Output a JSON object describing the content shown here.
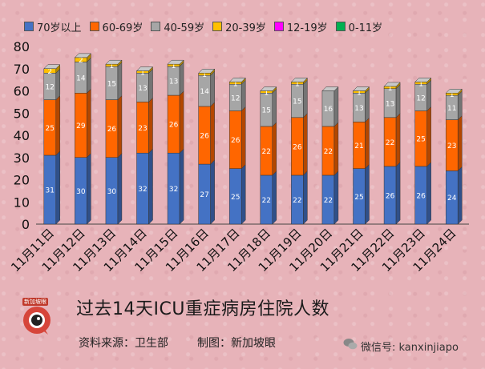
{
  "chart_data": {
    "type": "bar",
    "stacked": true,
    "categories": [
      "11月11日",
      "11月12日",
      "11月13日",
      "11月14日",
      "11月15日",
      "11月16日",
      "11月17日",
      "11月18日",
      "11月19日",
      "11月20日",
      "11月21日",
      "11月22日",
      "11月23日",
      "11月24日"
    ],
    "series": [
      {
        "name": "70岁以上",
        "color": "#4472c4",
        "values": [
          31,
          30,
          30,
          32,
          32,
          27,
          25,
          22,
          22,
          22,
          25,
          26,
          26,
          24
        ]
      },
      {
        "name": "60-69岁",
        "color": "#ff6600",
        "values": [
          25,
          29,
          26,
          23,
          26,
          26,
          26,
          22,
          26,
          22,
          21,
          22,
          25,
          23
        ]
      },
      {
        "name": "40-59岁",
        "color": "#a6a6a6",
        "values": [
          12,
          14,
          15,
          13,
          13,
          14,
          12,
          15,
          15,
          16,
          13,
          13,
          12,
          11
        ]
      },
      {
        "name": "20-39岁",
        "color": "#ffc000",
        "values": [
          2,
          2,
          1,
          1,
          1,
          1,
          1,
          1,
          1,
          0,
          1,
          1,
          1,
          1
        ]
      },
      {
        "name": "12-19岁",
        "color": "#ff00ff",
        "values": [
          0,
          0,
          0,
          0,
          0,
          0,
          0,
          0,
          0,
          0,
          0,
          0,
          0,
          0
        ]
      },
      {
        "name": "0-11岁",
        "color": "#00b050",
        "values": [
          0,
          0,
          0,
          0,
          0,
          0,
          0,
          0,
          0,
          0,
          0,
          0,
          0,
          0
        ]
      }
    ],
    "yticks": [
      0,
      10,
      20,
      30,
      40,
      50,
      60,
      70,
      80
    ],
    "ylim": [
      0,
      80
    ],
    "legend_position": "top"
  },
  "title": "过去14天ICU重症病房住院人数",
  "source": "资料来源：卫生部",
  "maker": "制图：新加坡眼",
  "logo_text": "新加坡眼",
  "wechat": "微信号: kanxinjiapo"
}
